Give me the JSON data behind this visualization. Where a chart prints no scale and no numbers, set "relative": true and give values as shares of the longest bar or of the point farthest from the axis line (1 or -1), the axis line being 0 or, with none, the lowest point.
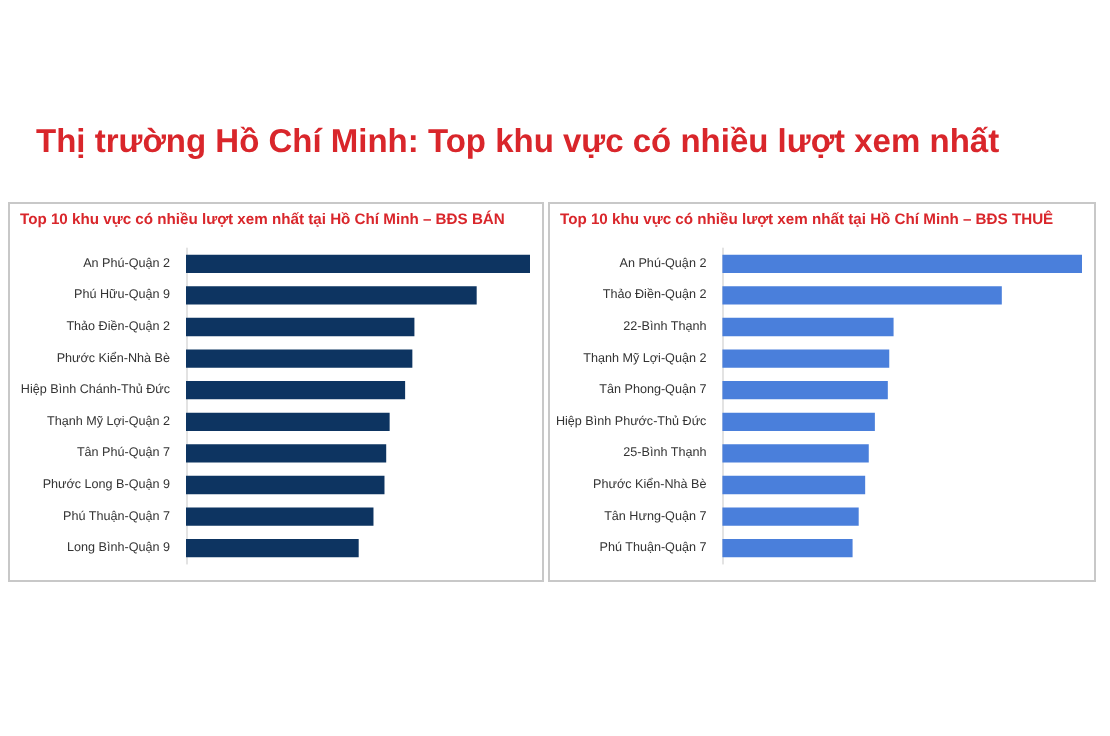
{
  "chart_data": [
    {
      "type": "bar",
      "orientation": "horizontal",
      "relative": true,
      "title": "Top 10 khu vực có nhiều lượt xem nhất tại Hồ Chí Minh – BĐS BÁN",
      "annotations": [
        "Thị trường Hồ Chí Minh: Top khu vực có nhiều lượt xem nhất"
      ],
      "categories": [
        "An Phú-Quận 2",
        "Phú Hữu-Quận 9",
        "Thảo Điền-Quận 2",
        "Phước Kiển-Nhà Bè",
        "Hiệp Bình Chánh-Thủ Đức",
        "Thạnh Mỹ Lợi-Quận 2",
        "Tân Phú-Quận 7",
        "Phước Long B-Quận 9",
        "Phú Thuận-Quận 7",
        "Long Bình-Quận 9"
      ],
      "values": [
        1,
        0.845,
        0.664,
        0.658,
        0.637,
        0.592,
        0.582,
        0.577,
        0.545,
        0.502
      ],
      "color": "#0d3461"
    },
    {
      "type": "bar",
      "orientation": "horizontal",
      "relative": true,
      "title": "Top 10 khu vực có nhiều lượt xem nhất tại Hồ Chí Minh – BĐS THUÊ",
      "categories": [
        "An Phú-Quận 2",
        "Thảo Điền-Quận 2",
        "22-Bình Thạnh",
        "Thạnh Mỹ Lợi-Quận 2",
        "Tân Phong-Quận 7",
        "Hiệp Bình Phước-Thủ Đức",
        "25-Bình Thạnh",
        "Phước Kiển-Nhà Bè",
        "Tân Hưng-Quận 7",
        "Phú Thuận-Quận 7"
      ],
      "values": [
        1,
        0.777,
        0.476,
        0.464,
        0.46,
        0.424,
        0.407,
        0.397,
        0.379,
        0.362
      ],
      "color": "#4a7fdb"
    }
  ]
}
